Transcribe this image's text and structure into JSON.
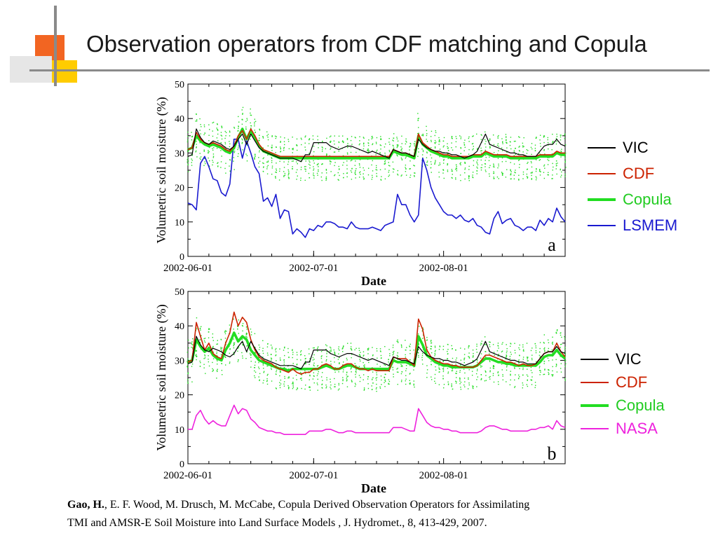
{
  "slide": {
    "title": "Observation operators from CDF matching and Copula"
  },
  "colors": {
    "accent_orange": "#f26522",
    "accent_yellow": "#ffcc00",
    "vic": "#000000",
    "cdf": "#cc2200",
    "copula": "#22dd22",
    "lsmem": "#1a1ad0",
    "nasa": "#ee22dd"
  },
  "chart_data": [
    {
      "type": "line",
      "panel_label": "a",
      "xlabel": "Date",
      "ylabel": "Volumetric soil moisture (%)",
      "ylim": [
        0,
        50
      ],
      "yticks": [
        "0",
        "10",
        "20",
        "30",
        "40",
        "50"
      ],
      "xticks": [
        "2002-06-01",
        "2002-07-01",
        "2002-08-01"
      ],
      "x_start": "2002-06-01",
      "days": 91,
      "series": [
        {
          "name": "VIC",
          "color": "#000000",
          "values": [
            29,
            29.5,
            37,
            34.5,
            33,
            32.5,
            33.5,
            33,
            32.5,
            31.5,
            31,
            32,
            34,
            35.5,
            32.5,
            35.5,
            33.5,
            31.5,
            30.5,
            30,
            29.5,
            29,
            28.5,
            28.5,
            28.5,
            28.5,
            28,
            27.5,
            29.5,
            29.5,
            33,
            33,
            33,
            33,
            32,
            31.5,
            31,
            31.5,
            32,
            32,
            31.5,
            31,
            30.5,
            30,
            30.5,
            30,
            29.5,
            29,
            28.5,
            31,
            30.5,
            30,
            30,
            29.5,
            29,
            34,
            32.5,
            31.5,
            31,
            30.5,
            30.5,
            30,
            30,
            29.5,
            29.5,
            29,
            28.5,
            29,
            29.5,
            30.5,
            33,
            35.5,
            32.5,
            32,
            31.5,
            31,
            30.5,
            30,
            30,
            29.5,
            29.5,
            29,
            29,
            29,
            30.5,
            32,
            32.5,
            32.5,
            34,
            32.5,
            32
          ]
        },
        {
          "name": "CDF",
          "color": "#cc2200",
          "values": [
            31,
            31.5,
            36,
            34,
            33,
            32.5,
            33,
            32.5,
            32,
            31,
            30.5,
            32,
            35,
            36.5,
            34,
            37,
            35,
            32.5,
            31,
            30.5,
            30,
            29.5,
            29,
            29,
            29,
            29,
            29,
            29,
            29,
            29,
            29,
            29,
            29,
            29,
            29,
            29,
            29,
            29,
            29,
            29,
            29,
            29,
            29,
            29,
            29,
            29,
            29,
            29,
            29,
            31,
            30.5,
            30,
            30,
            29.5,
            29,
            35.5,
            33,
            32,
            31,
            30.5,
            30,
            29.5,
            29.5,
            29,
            29,
            29,
            29,
            29,
            29.5,
            29.5,
            29.5,
            30.5,
            30,
            29.5,
            29.5,
            29.5,
            29.5,
            29,
            29,
            29,
            29,
            29,
            29,
            29,
            29.5,
            29.5,
            29.5,
            29.5,
            30.5,
            30,
            30
          ]
        },
        {
          "name": "Copula",
          "color": "#22dd22",
          "values": [
            31,
            31.5,
            35,
            33.5,
            32.5,
            32,
            32.5,
            32,
            31.5,
            30.5,
            30,
            31.5,
            34.5,
            37,
            34,
            36.5,
            34.5,
            32,
            30.5,
            30,
            29.5,
            29,
            28.5,
            28.5,
            28.5,
            28.5,
            28.5,
            28.5,
            28.5,
            28.5,
            28.5,
            28.5,
            28.5,
            28.5,
            28.5,
            28.5,
            28.5,
            28.5,
            28.5,
            28.5,
            28.5,
            28.5,
            28.5,
            28.5,
            28.5,
            28.5,
            28.5,
            28.5,
            28.5,
            30.5,
            30,
            29.5,
            29.5,
            29,
            28.5,
            35,
            32.5,
            31.5,
            30.5,
            30,
            29.5,
            29,
            29,
            28.5,
            28.5,
            28.5,
            28.5,
            28.5,
            29,
            29,
            29,
            30,
            29.5,
            29,
            29,
            29,
            29,
            28.5,
            28.5,
            28.5,
            28.5,
            28.5,
            28.5,
            28.5,
            29,
            29,
            29,
            29,
            30,
            29.5,
            29.5
          ]
        },
        {
          "name": "LSMEM",
          "color": "#1a1ad0",
          "values": [
            15.5,
            15,
            13.5,
            27,
            29,
            26,
            22.5,
            22,
            18.5,
            17.5,
            21,
            34,
            34,
            28.5,
            33.5,
            30,
            26,
            24,
            16,
            17,
            14.5,
            18,
            11,
            13.5,
            13,
            6.5,
            8,
            7,
            5.5,
            8,
            7.5,
            9,
            8.5,
            10,
            10,
            9.5,
            8.5,
            8.5,
            8,
            10,
            8.5,
            8,
            8,
            8,
            8.5,
            8,
            7.5,
            9,
            9.5,
            10,
            18,
            15,
            15,
            12,
            10,
            12,
            28.5,
            25,
            20,
            17,
            15,
            13,
            12,
            12,
            11,
            12,
            10.5,
            10,
            11,
            9,
            8.5,
            7,
            6.5,
            11,
            13,
            9.5,
            10.5,
            11,
            9,
            8.5,
            7.5,
            8.5,
            8.5,
            7.5,
            10.5,
            9,
            11,
            10,
            14,
            11.5,
            10
          ]
        }
      ]
    },
    {
      "type": "line",
      "panel_label": "b",
      "xlabel": "Date",
      "ylabel": "Volumetric soil moisture (%)",
      "ylim": [
        0,
        50
      ],
      "yticks": [
        "0",
        "10",
        "20",
        "30",
        "40",
        "50"
      ],
      "xticks": [
        "2002-06-01",
        "2002-07-01",
        "2002-08-01"
      ],
      "x_start": "2002-06-01",
      "days": 91,
      "series": [
        {
          "name": "VIC",
          "color": "#000000",
          "values": [
            29,
            29.5,
            37,
            34.5,
            33,
            32.5,
            33.5,
            33,
            32.5,
            31.5,
            31,
            32,
            34,
            35.5,
            32.5,
            35.5,
            33.5,
            31.5,
            30.5,
            30,
            29.5,
            29,
            28.5,
            28.5,
            28.5,
            28.5,
            28,
            27.5,
            29.5,
            29.5,
            33,
            33,
            33,
            33,
            32,
            31.5,
            31,
            31.5,
            32,
            32,
            31.5,
            31,
            30.5,
            30,
            30.5,
            30,
            29.5,
            29,
            28.5,
            31,
            30.5,
            30,
            30,
            29.5,
            29,
            34,
            32.5,
            31.5,
            31,
            30.5,
            30.5,
            30,
            30,
            29.5,
            29.5,
            29,
            28.5,
            29,
            29.5,
            30.5,
            33,
            35.5,
            32.5,
            32,
            31.5,
            31,
            30.5,
            30,
            30,
            29.5,
            29.5,
            29,
            29,
            29,
            30.5,
            32,
            32.5,
            32.5,
            34,
            32.5,
            32
          ]
        },
        {
          "name": "CDF",
          "color": "#cc2200",
          "values": [
            29.5,
            30,
            41,
            37,
            33,
            35,
            32,
            31,
            30.5,
            35,
            38,
            44,
            40,
            42.5,
            41,
            36,
            33,
            31,
            30,
            29.5,
            29,
            28,
            27.5,
            27,
            26.5,
            27.5,
            26.5,
            26,
            26.5,
            26.5,
            27.5,
            27.5,
            28.5,
            29,
            28.5,
            27.5,
            27.5,
            28.5,
            29,
            29,
            28,
            27.5,
            27.5,
            27,
            27.5,
            27,
            27,
            27,
            27,
            31,
            30.5,
            30.5,
            30.5,
            29.5,
            28.5,
            42,
            39,
            33,
            31,
            30,
            29.5,
            29,
            29,
            28.5,
            28.5,
            28,
            28,
            28,
            28,
            28.5,
            30,
            31.5,
            31.5,
            31,
            30.5,
            30,
            29.5,
            29.5,
            29,
            28.5,
            29,
            28.5,
            28.5,
            29,
            30.5,
            32,
            32.5,
            32.5,
            35,
            32.5,
            31
          ]
        },
        {
          "name": "Copula",
          "color": "#22dd22",
          "values": [
            29.5,
            30,
            36,
            34,
            32.5,
            33.5,
            31.5,
            30.5,
            30,
            33,
            35,
            38,
            35.5,
            37,
            36,
            33,
            31.5,
            30,
            29.5,
            29,
            28.5,
            28,
            27.5,
            27.5,
            27,
            27.5,
            27.5,
            27.5,
            27.5,
            27.5,
            27.5,
            27.5,
            28,
            28.5,
            28,
            27.5,
            27.5,
            28,
            28.5,
            28.5,
            28,
            27.5,
            27.5,
            27.5,
            27.5,
            27.5,
            27.5,
            27.5,
            27.5,
            30,
            29.5,
            29.5,
            29.5,
            29,
            28.5,
            37,
            34.5,
            31.5,
            30.5,
            29.5,
            29,
            28.5,
            28.5,
            28,
            28,
            28,
            28,
            28,
            28,
            28.5,
            29.5,
            30.5,
            30.5,
            30,
            29.5,
            29.5,
            29,
            29,
            28.5,
            28.5,
            28.5,
            28.5,
            28.5,
            28.5,
            29.5,
            31,
            31.5,
            31.5,
            33,
            31.5,
            30.5
          ]
        },
        {
          "name": "NASA",
          "color": "#ee22dd",
          "values": [
            10,
            10,
            14,
            15.5,
            13,
            11.5,
            12.5,
            11.5,
            11,
            11,
            14,
            17,
            14.5,
            16,
            15.5,
            13,
            12,
            10.5,
            10,
            9.5,
            9.5,
            9,
            9,
            8.5,
            8.5,
            8.5,
            8.5,
            8.5,
            8.5,
            9.5,
            9.5,
            9.5,
            9.5,
            10,
            10,
            9.5,
            9,
            9,
            9.5,
            9.5,
            9,
            9,
            9,
            9,
            9,
            9,
            9,
            9,
            9,
            10.5,
            10.5,
            10.5,
            10,
            9.5,
            9.5,
            16,
            14,
            12,
            11,
            10.5,
            10.5,
            10,
            10,
            9.5,
            9.5,
            9,
            9,
            9,
            9,
            9,
            9.5,
            10.5,
            11,
            11,
            10.5,
            10,
            10,
            9.5,
            9.5,
            9.5,
            9.5,
            9.5,
            10,
            10,
            10.5,
            10.5,
            11,
            10,
            12.5,
            11,
            10.5
          ]
        }
      ]
    }
  ],
  "legend_a": [
    {
      "label": "VIC",
      "color": "#000000"
    },
    {
      "label": "CDF",
      "color": "#cc2200"
    },
    {
      "label": "Copula",
      "color": "#22dd22"
    },
    {
      "label": "LSMEM",
      "color": "#1a1ad0"
    }
  ],
  "legend_b": [
    {
      "label": "VIC",
      "color": "#000000"
    },
    {
      "label": "CDF",
      "color": "#cc2200"
    },
    {
      "label": "Copula",
      "color": "#22dd22"
    },
    {
      "label": "NASA",
      "color": "#ee22dd"
    }
  ],
  "citation": {
    "author_bold": "Gao, H.",
    "rest_line1": ", E. F. Wood, M. Drusch, M. McCabe, Copula Derived Observation Operators for Assimilating",
    "line2": "TMI and AMSR-E Soil Moisture into Land Surface Models , J. Hydromet., 8, 413-429, 2007."
  }
}
